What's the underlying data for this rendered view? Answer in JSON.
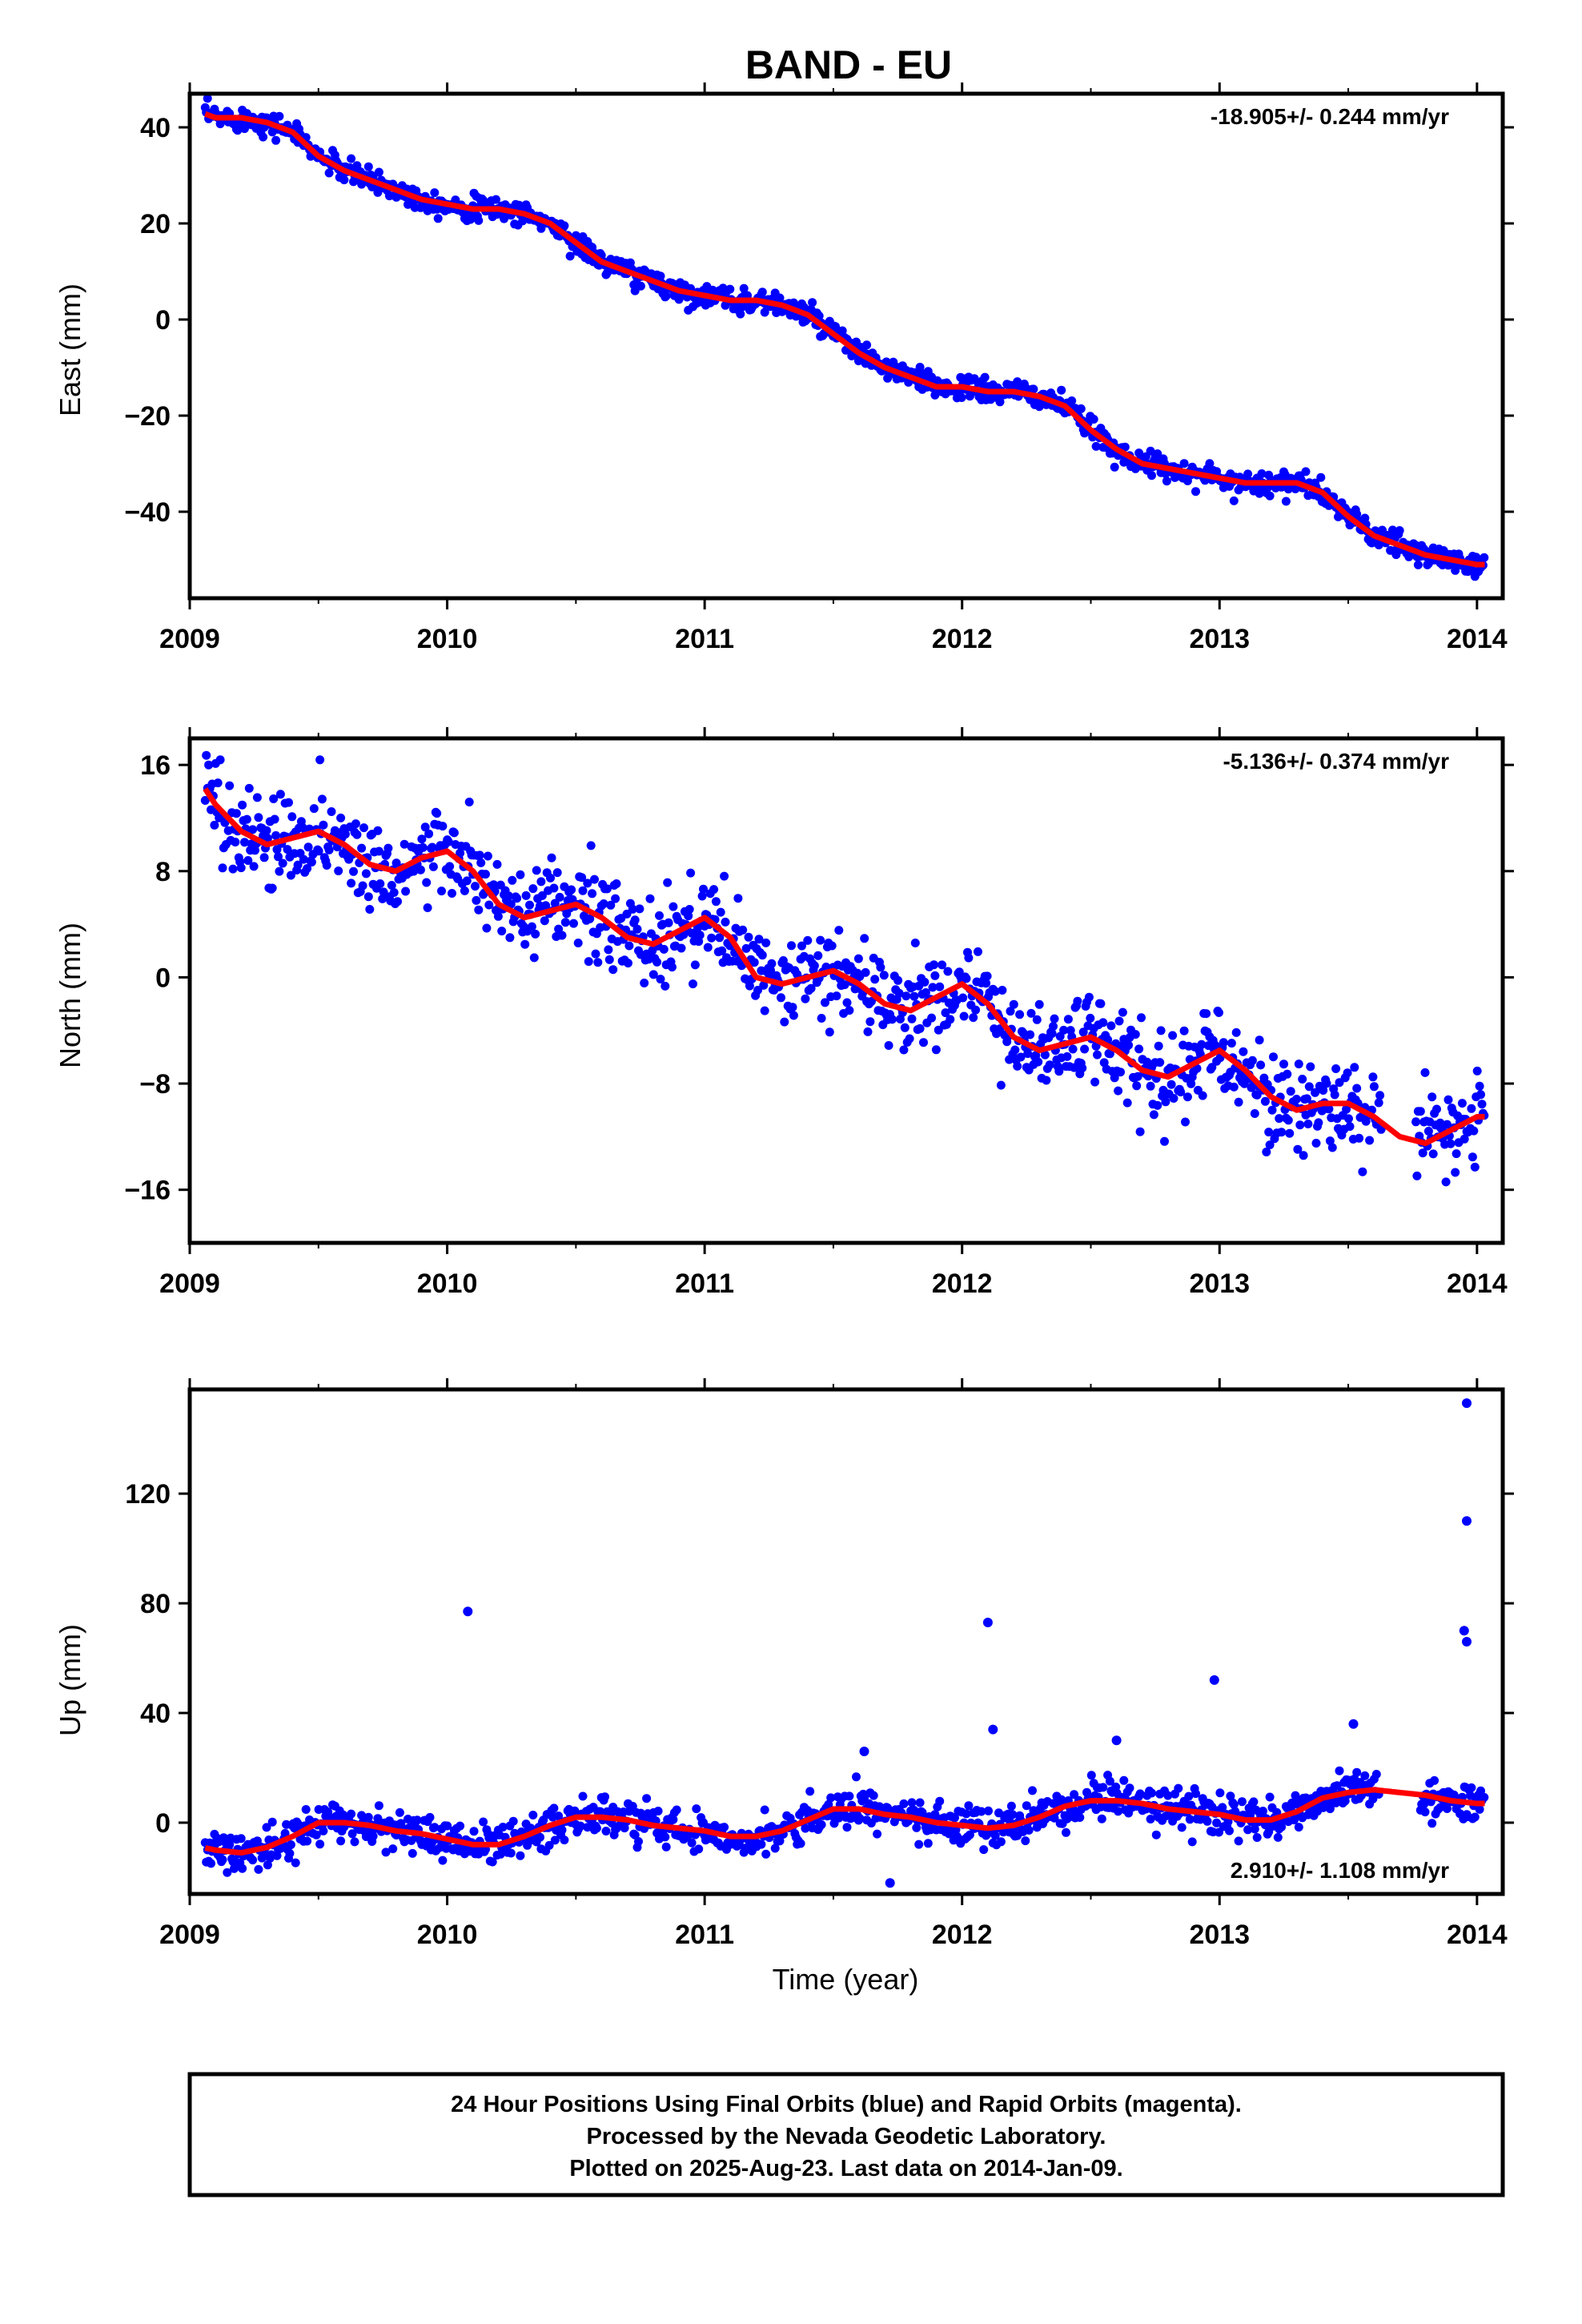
{
  "title": "BAND - EU",
  "colors": {
    "points": "#0000ff",
    "fit": "#ff0000",
    "frame": "#000000"
  },
  "x_tick_labels": [
    "2009",
    "2010",
    "2011",
    "2012",
    "2013",
    "2014"
  ],
  "xlabel": "Time (year)",
  "footer": {
    "line1": "24 Hour Positions Using Final Orbits (blue) and Rapid Orbits (magenta).",
    "line2": "Processed by the Nevada Geodetic Laboratory.",
    "line3": "Plotted on 2025-Aug-23. Last data on 2014-Jan-09."
  },
  "chart_data": [
    {
      "type": "scatter",
      "ylabel": "East (mm)",
      "rate_text": "-18.905+/- 0.244 mm/yr",
      "xlim": [
        2009.0,
        2014.1
      ],
      "ylim": [
        -58,
        47
      ],
      "yticks": [
        40,
        20,
        0,
        -20,
        -40
      ],
      "ytick_labels": [
        "40",
        "20",
        "0",
        "−20",
        "−40"
      ],
      "series": [
        {
          "values_note": "",
          "x": [
            2009.05,
            2009.1,
            2009.2,
            2009.3,
            2009.4,
            2009.5,
            2009.6,
            2009.7,
            2009.8,
            2009.9,
            2010.0,
            2010.1,
            2010.2,
            2010.3,
            2010.4,
            2010.5,
            2010.6,
            2010.7,
            2010.8,
            2010.9,
            2011.0,
            2011.1,
            2011.2,
            2011.3,
            2011.4,
            2011.5,
            2011.6,
            2011.7,
            2011.8,
            2011.9,
            2012.0,
            2012.1,
            2012.2,
            2012.3,
            2012.4,
            2012.5,
            2012.6,
            2012.7,
            2012.8,
            2012.9,
            2013.0,
            2013.1,
            2013.2,
            2013.3,
            2013.4,
            2013.5,
            2013.6,
            2013.7,
            2013.8,
            2013.9,
            2014.0
          ],
          "y": [
            43,
            42,
            42,
            41,
            39,
            34,
            31,
            29,
            27,
            25,
            24,
            23,
            23,
            22,
            20,
            16,
            12,
            10,
            8,
            6,
            5,
            4,
            4,
            3,
            1,
            -3,
            -7,
            -10,
            -12,
            -14,
            -14,
            -15,
            -15,
            -16,
            -18,
            -23,
            -27,
            -30,
            -31,
            -32,
            -33,
            -34,
            -34,
            -34,
            -36,
            -41,
            -45,
            -47,
            -49,
            -50,
            -51
          ]
        }
      ]
    },
    {
      "type": "scatter",
      "ylabel": "North (mm)",
      "rate_text": "-5.136+/- 0.374 mm/yr",
      "xlim": [
        2009.0,
        2014.1
      ],
      "ylim": [
        -20,
        18
      ],
      "yticks": [
        16,
        8,
        0,
        -8,
        -16
      ],
      "ytick_labels": [
        "16",
        "8",
        "0",
        "−8",
        "−16"
      ],
      "series": [
        {
          "x": [
            2009.05,
            2009.1,
            2009.2,
            2009.3,
            2009.4,
            2009.5,
            2009.6,
            2009.7,
            2009.8,
            2009.9,
            2010.0,
            2010.1,
            2010.2,
            2010.3,
            2010.4,
            2010.5,
            2010.6,
            2010.7,
            2010.8,
            2010.9,
            2011.0,
            2011.1,
            2011.2,
            2011.3,
            2011.4,
            2011.5,
            2011.6,
            2011.7,
            2011.8,
            2011.9,
            2012.0,
            2012.1,
            2012.2,
            2012.3,
            2012.4,
            2012.5,
            2012.6,
            2012.7,
            2012.8,
            2012.9,
            2013.0,
            2013.1,
            2013.2,
            2013.3,
            2013.4,
            2013.5,
            2013.6,
            2013.7,
            2013.8,
            2013.9,
            2014.0
          ],
          "y": [
            14.5,
            13,
            11,
            10,
            10.5,
            11,
            10,
            8.5,
            8,
            9,
            9.5,
            8,
            5.5,
            4.5,
            5,
            5.5,
            4.5,
            3,
            2.5,
            3.5,
            4.5,
            3,
            0,
            -0.5,
            0,
            0.5,
            -0.5,
            -2,
            -2.5,
            -1.5,
            -0.5,
            -2,
            -4.5,
            -5.5,
            -5,
            -4.5,
            -5.5,
            -7,
            -7.5,
            -6.5,
            -5.5,
            -7,
            -9,
            -10,
            -9.5,
            -9.5,
            -10.5,
            -12,
            -12.5,
            -11.5,
            -10.5
          ]
        }
      ]
    },
    {
      "type": "scatter",
      "ylabel": "Up (mm)",
      "rate_text": "2.910+/- 1.108 mm/yr",
      "xlim": [
        2009.0,
        2014.1
      ],
      "ylim": [
        -26,
        158
      ],
      "yticks": [
        120,
        80,
        40,
        0
      ],
      "ytick_labels": [
        "120",
        "80",
        "40",
        "0"
      ],
      "series": [
        {
          "x": [
            2009.05,
            2009.1,
            2009.2,
            2009.3,
            2009.4,
            2009.5,
            2009.6,
            2009.7,
            2009.8,
            2009.9,
            2010.0,
            2010.1,
            2010.2,
            2010.3,
            2010.4,
            2010.5,
            2010.6,
            2010.7,
            2010.8,
            2010.9,
            2011.0,
            2011.1,
            2011.2,
            2011.3,
            2011.4,
            2011.5,
            2011.6,
            2011.7,
            2011.8,
            2011.9,
            2012.0,
            2012.1,
            2012.2,
            2012.3,
            2012.4,
            2012.5,
            2012.6,
            2012.7,
            2012.8,
            2012.9,
            2013.0,
            2013.1,
            2013.2,
            2013.3,
            2013.4,
            2013.5,
            2013.6,
            2013.7,
            2013.8,
            2013.9,
            2014.0
          ],
          "y": [
            -9,
            -10,
            -11,
            -9,
            -5,
            0,
            0,
            -1,
            -3,
            -4,
            -6,
            -8,
            -8,
            -5,
            -1,
            2,
            2,
            1,
            -1,
            -2,
            -3,
            -5,
            -5,
            -3,
            1,
            5,
            5,
            3,
            2,
            0,
            -1,
            -2,
            -1,
            2,
            6,
            8,
            8,
            7,
            5,
            4,
            3,
            1,
            1,
            4,
            9,
            11,
            12,
            11,
            10,
            8,
            7
          ],
          "outliers": [
            [
              2010.08,
              77
            ],
            [
              2012.1,
              73
            ],
            [
              2012.12,
              34
            ],
            [
              2012.98,
              52
            ],
            [
              2012.6,
              30
            ],
            [
              2013.52,
              36
            ],
            [
              2013.96,
              153
            ],
            [
              2013.96,
              110
            ],
            [
              2013.95,
              70
            ],
            [
              2013.96,
              66
            ],
            [
              2011.72,
              -22
            ],
            [
              2011.62,
              26
            ]
          ]
        }
      ]
    }
  ]
}
